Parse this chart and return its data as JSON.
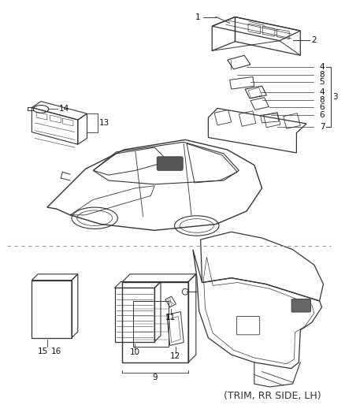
{
  "bg_color": "#ffffff",
  "line_color": "#333333",
  "dash_color": "#999999",
  "label_color": "#111111",
  "lfs": 7.5,
  "trim_text": "(TRIM, RR SIDE, LH)"
}
